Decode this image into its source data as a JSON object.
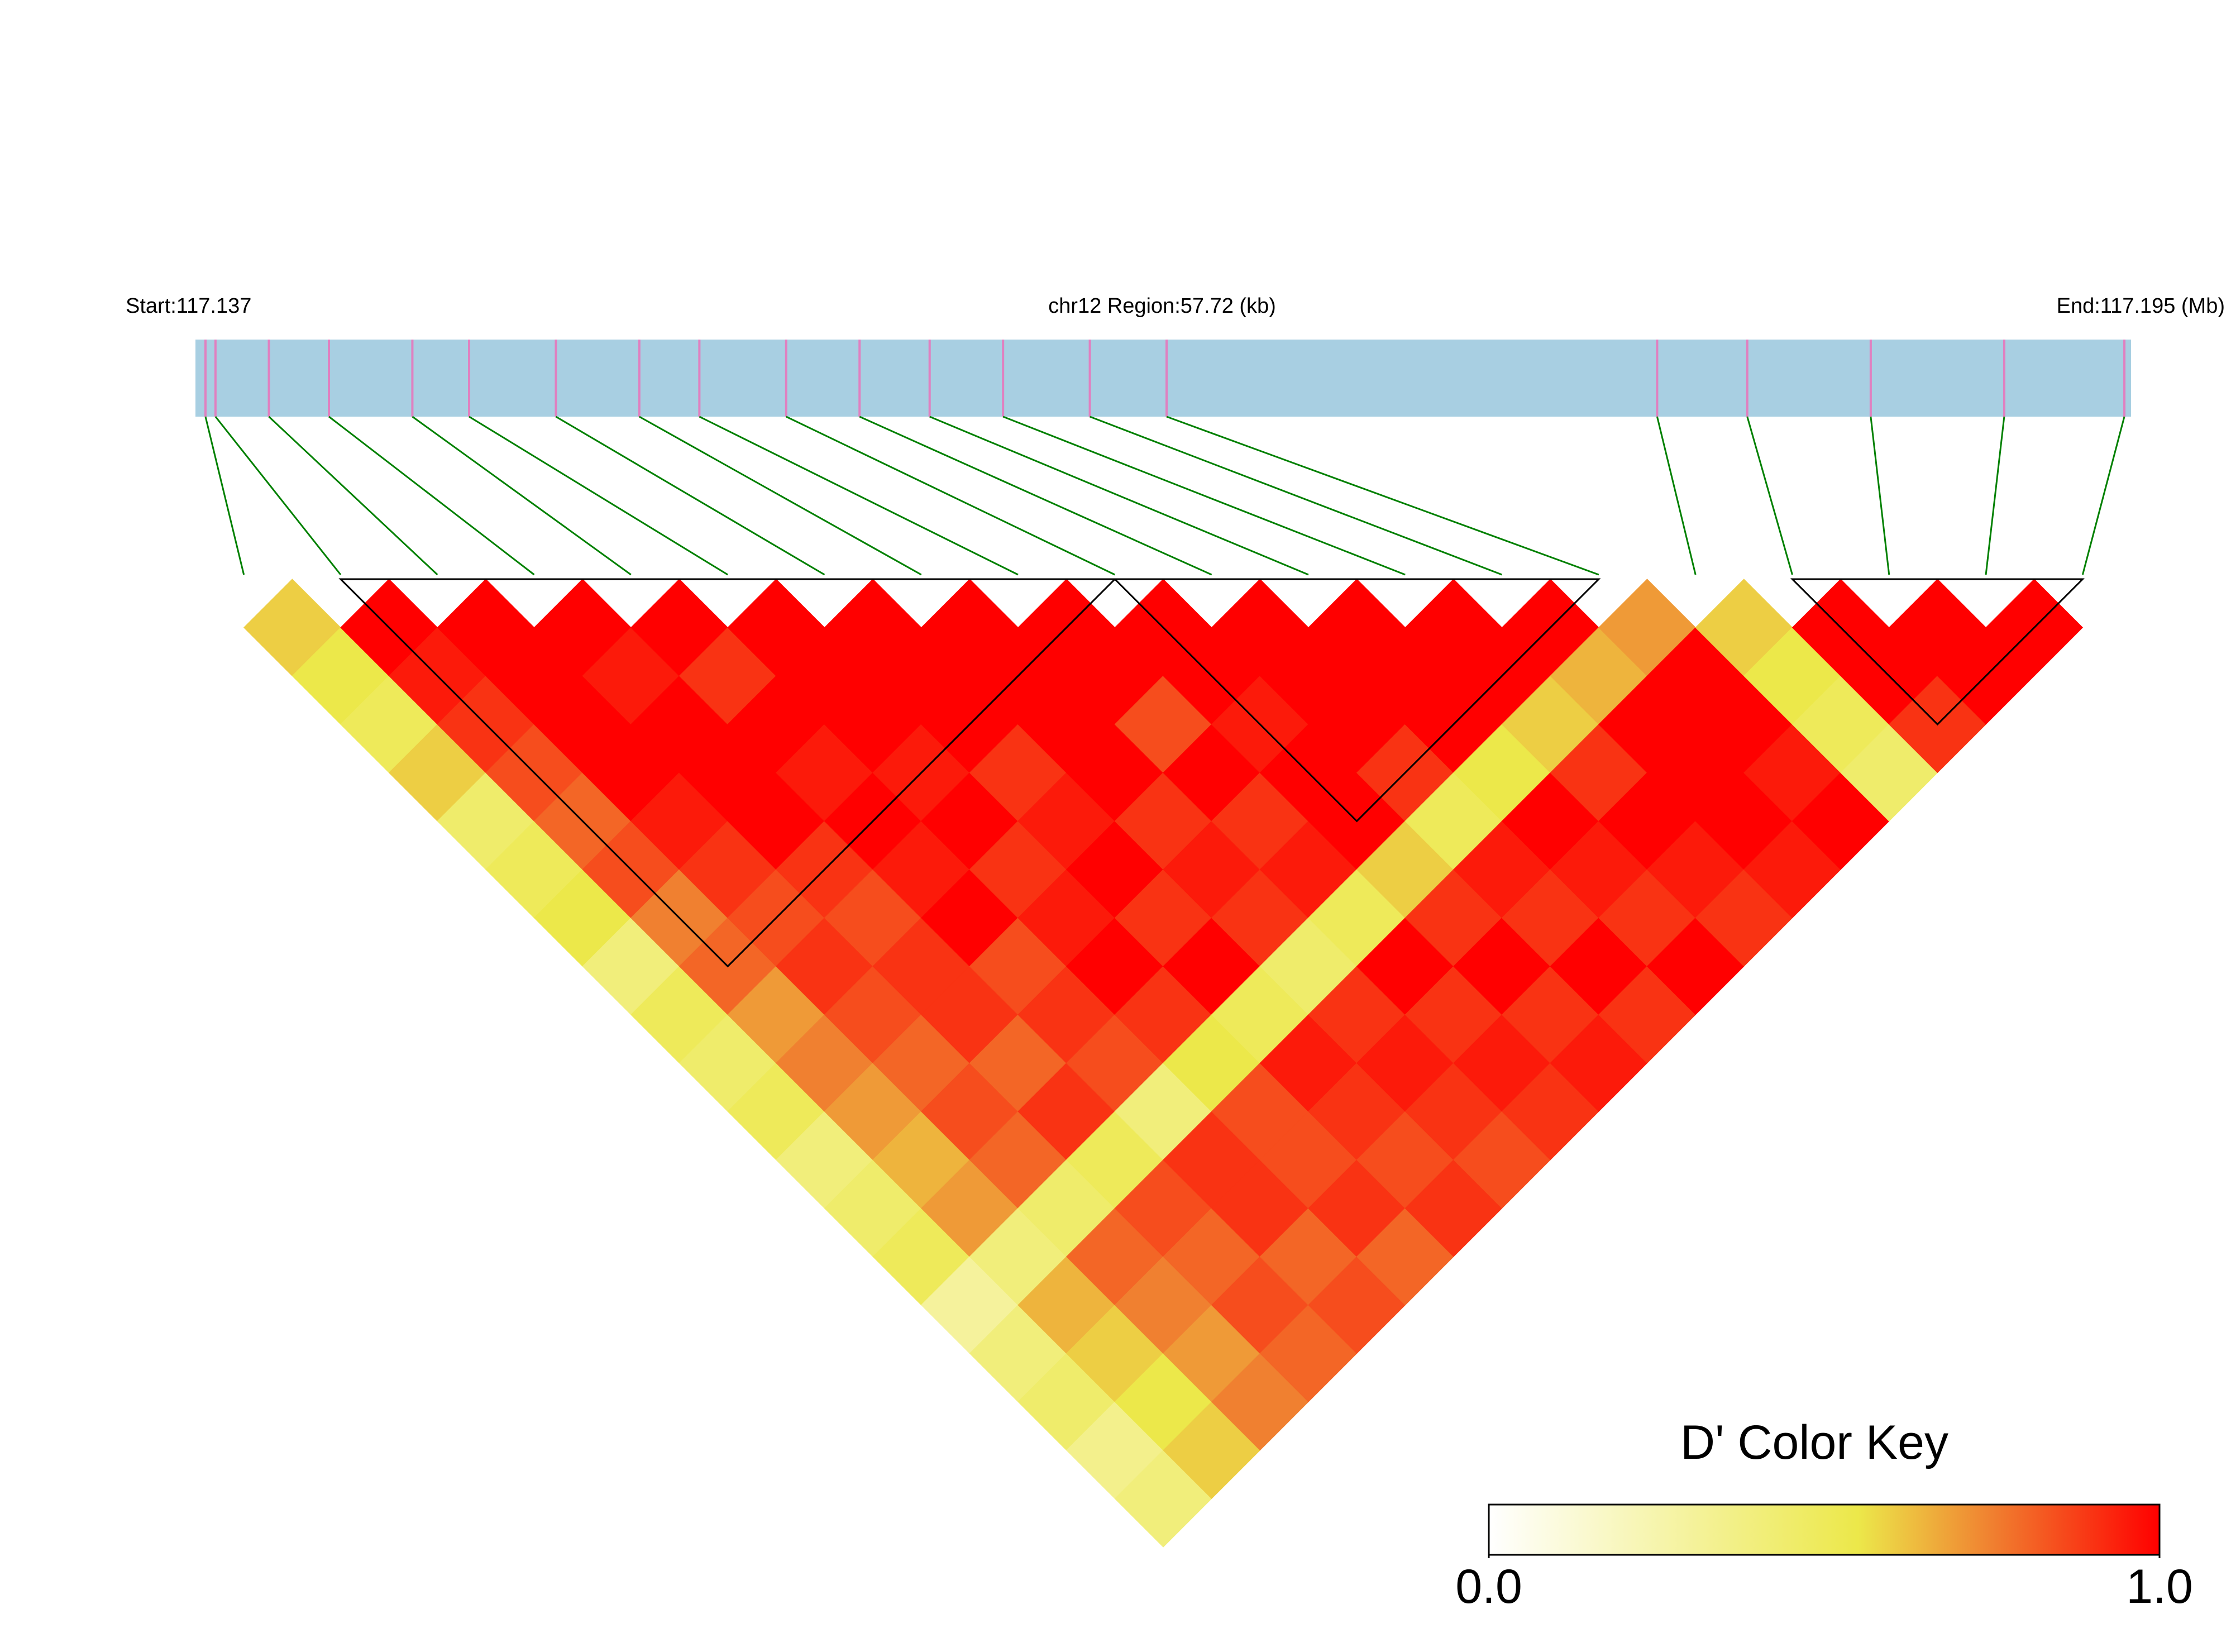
{
  "chart_data": {
    "type": "heatmap",
    "start_label": "Start:117.137",
    "region_label": "chr12 Region:57.72 (kb)",
    "end_label": "End:117.195 (Mb)",
    "xlim": [
      117.137,
      117.195
    ],
    "positions": [
      117.1373,
      117.1376,
      117.1392,
      117.141,
      117.1435,
      117.1452,
      117.1478,
      117.1503,
      117.1521,
      117.1547,
      117.1569,
      117.159,
      117.1612,
      117.1638,
      117.1661,
      117.1808,
      117.1835,
      117.1872,
      117.1912,
      117.1948
    ],
    "dprime": [
      [
        0.6
      ],
      [
        0.55,
        1
      ],
      [
        0.5,
        0.95,
        1
      ],
      [
        0.6,
        0.9,
        1,
        1
      ],
      [
        0.45,
        0.85,
        1,
        0.95,
        1
      ],
      [
        0.5,
        0.8,
        1,
        1,
        0.9,
        1
      ],
      [
        0.55,
        0.85,
        0.95,
        1,
        1,
        1,
        1
      ],
      [
        0.4,
        0.75,
        0.9,
        1,
        0.95,
        1,
        1,
        1
      ],
      [
        0.5,
        0.8,
        0.85,
        0.9,
        1,
        0.95,
        1,
        1,
        1
      ],
      [
        0.45,
        0.7,
        0.9,
        0.85,
        0.95,
        1,
        0.9,
        1,
        1,
        1
      ],
      [
        0.5,
        0.75,
        0.85,
        0.9,
        1,
        0.9,
        0.95,
        1,
        0.85,
        1,
        1
      ],
      [
        0.4,
        0.7,
        0.8,
        0.9,
        0.85,
        0.95,
        1,
        0.9,
        1,
        0.95,
        1,
        1
      ],
      [
        0.45,
        0.65,
        0.85,
        0.8,
        0.9,
        1,
        0.9,
        0.95,
        0.9,
        1,
        1,
        1,
        1
      ],
      [
        0.5,
        0.7,
        0.8,
        0.9,
        0.85,
        0.9,
        1,
        0.9,
        0.95,
        1,
        0.9,
        1,
        1,
        1
      ],
      [
        0.3,
        0.4,
        0.45,
        0.5,
        0.4,
        0.55,
        0.5,
        0.45,
        0.5,
        0.6,
        0.5,
        0.55,
        0.6,
        0.65,
        0.7
      ],
      [
        0.4,
        0.65,
        0.8,
        0.85,
        0.9,
        0.85,
        0.95,
        0.9,
        1,
        0.9,
        0.95,
        1,
        0.9,
        1,
        1,
        0.6
      ],
      [
        0.45,
        0.6,
        0.75,
        0.8,
        0.9,
        0.85,
        0.9,
        0.95,
        0.9,
        1,
        0.9,
        0.95,
        1,
        1,
        1,
        0.55,
        1
      ],
      [
        0.35,
        0.55,
        0.7,
        0.85,
        0.8,
        0.9,
        0.85,
        0.9,
        0.95,
        0.9,
        1,
        0.9,
        0.95,
        1,
        0.95,
        0.5,
        1,
        1
      ],
      [
        0.4,
        0.6,
        0.75,
        0.8,
        0.85,
        0.8,
        0.9,
        0.85,
        0.9,
        0.95,
        0.9,
        1,
        0.9,
        0.95,
        1,
        0.45,
        0.9,
        1,
        1
      ]
    ],
    "ld_blocks": [
      [
        1,
        9
      ],
      [
        9,
        14
      ],
      [
        16,
        19
      ]
    ],
    "color_scale": [
      [
        0,
        "#ffffff"
      ],
      [
        0.55,
        "#ece84a"
      ],
      [
        0.75,
        "#f08030"
      ],
      [
        1,
        "#ff0000"
      ]
    ],
    "legend_title": "D' Color Key",
    "clim": [
      0,
      1
    ],
    "cticks": [
      {
        "value": 0,
        "label": "0.0"
      },
      {
        "value": 1,
        "label": "1.0"
      }
    ],
    "bar_color": "#a8cfe2",
    "snp_line_color": "#e080c0",
    "link_color": "#008000",
    "block_color": "#000000"
  }
}
